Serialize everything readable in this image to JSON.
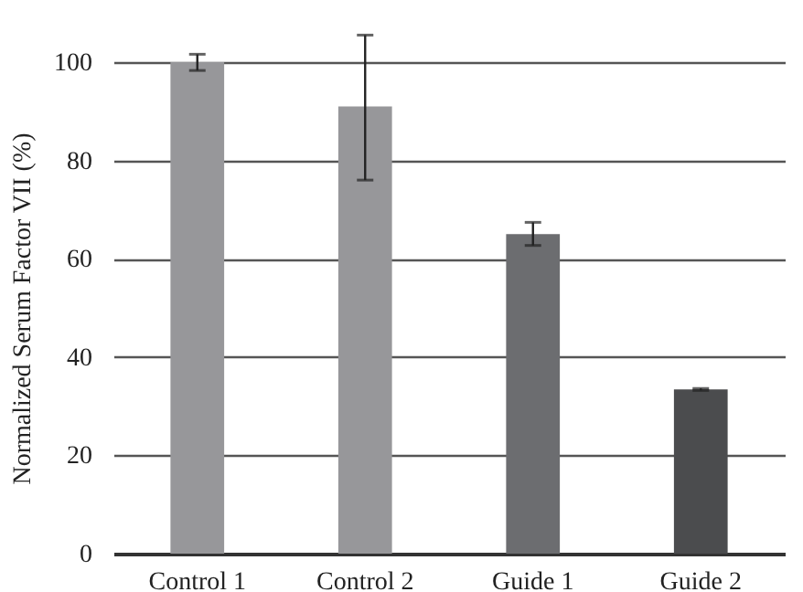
{
  "chart_data": {
    "type": "bar",
    "ylabel": "Normalized Serum Factor VII (%)",
    "categories": [
      "Control 1",
      "Control 2",
      "Guide 1",
      "Guide 2"
    ],
    "values": [
      100,
      91,
      65,
      33.4
    ],
    "colors": [
      "#97979a",
      "#97979a",
      "#6c6d70",
      "#4b4c4e"
    ],
    "errors": [
      [
        98.3,
        101.6
      ],
      [
        76,
        105.5
      ],
      [
        62.7,
        67.4
      ],
      [
        33.2,
        33.6
      ]
    ],
    "ylim": [
      0,
      100
    ],
    "yticks": [
      0,
      20,
      40,
      60,
      80,
      100
    ],
    "grid": "y",
    "legend": false
  }
}
